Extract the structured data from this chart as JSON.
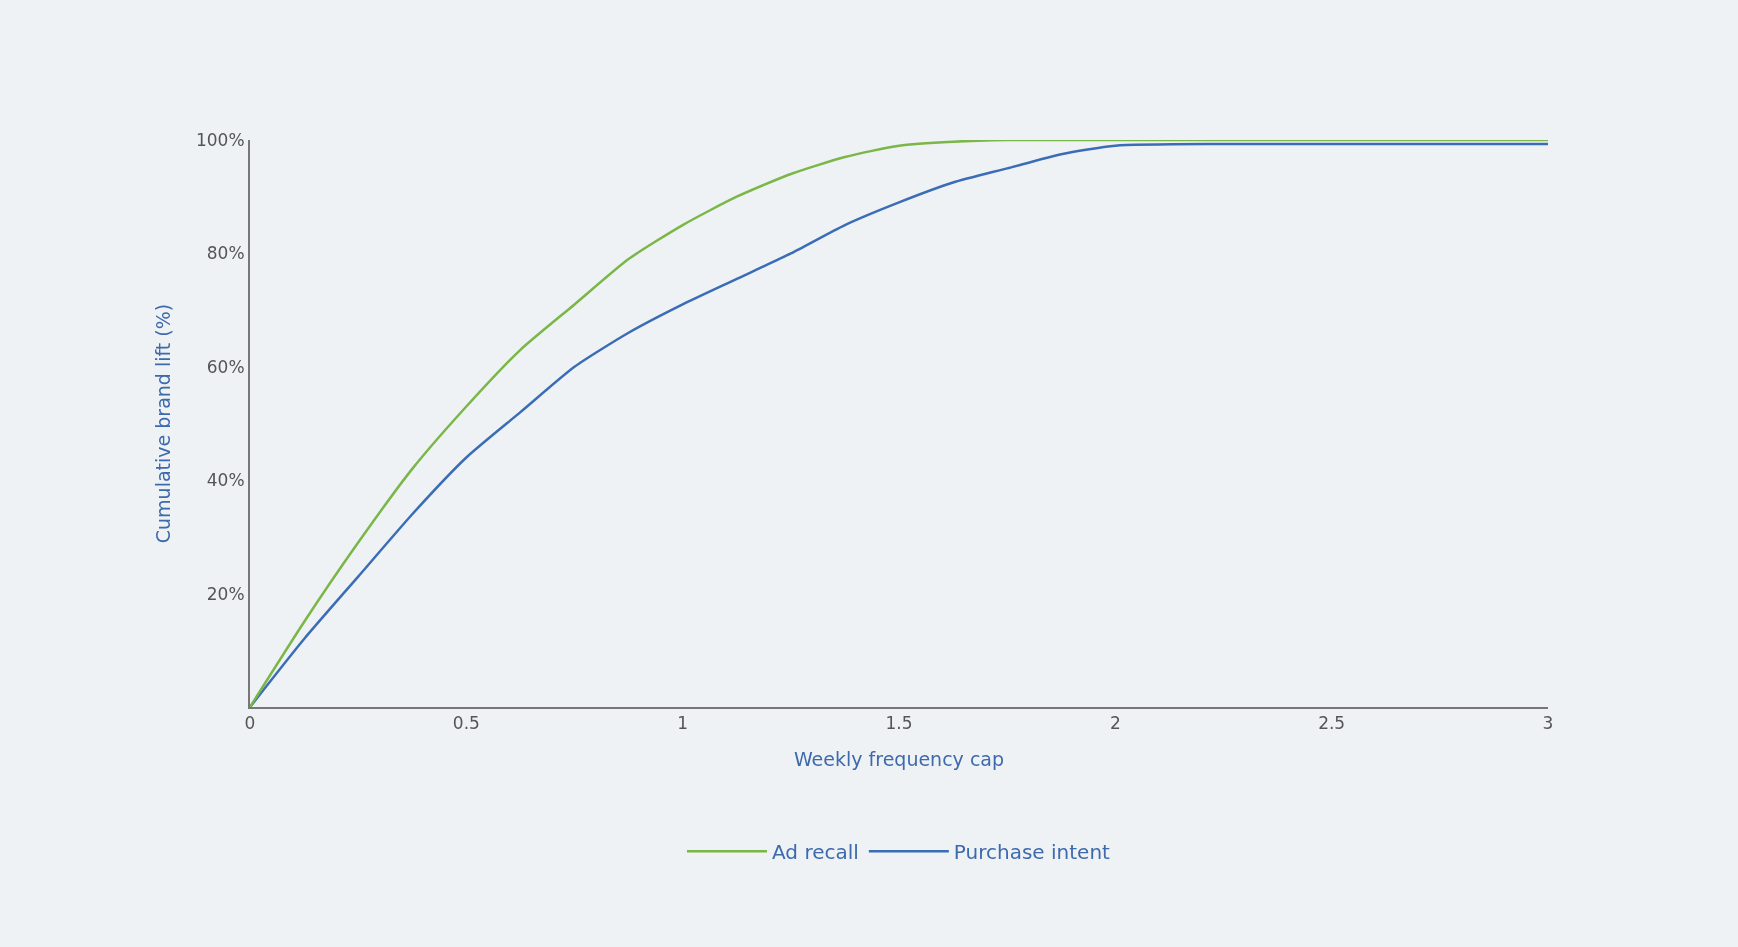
{
  "chart_data": {
    "type": "line",
    "xlabel": "Weekly frequency cap",
    "ylabel": "Cumulative brand lift (%)",
    "x": [
      0,
      0.125,
      0.25,
      0.375,
      0.5,
      0.625,
      0.75,
      0.875,
      1,
      1.125,
      1.25,
      1.375,
      1.5,
      1.625,
      1.75,
      1.875,
      2,
      2.25,
      2.5,
      2.75,
      3
    ],
    "series": [
      {
        "name": "Ad recall",
        "color": "#7ab648",
        "values": [
          0,
          15,
          29,
          42,
          53,
          63,
          71,
          79,
          85,
          90,
          94,
          97,
          99,
          99.7,
          100,
          100,
          100,
          100,
          100,
          100,
          100
        ]
      },
      {
        "name": "Purchase intent",
        "color": "#3a6db5",
        "values": [
          0,
          12,
          23,
          34,
          44,
          52,
          60,
          66,
          71,
          75.5,
          80,
          85,
          89,
          92.5,
          95,
          97.5,
          99,
          99.3,
          99.3,
          99.3,
          99.3
        ]
      }
    ],
    "xlim": [
      0,
      3
    ],
    "xticks": [
      0,
      0.5,
      1,
      1.5,
      2,
      2.5,
      3
    ],
    "ylim": [
      0,
      100
    ],
    "yticks": [
      {
        "value": 20,
        "label": "20%"
      },
      {
        "value": 40,
        "label": "40%"
      },
      {
        "value": 60,
        "label": "60%"
      },
      {
        "value": 80,
        "label": "80%"
      },
      {
        "value": 100,
        "label": "100%"
      }
    ],
    "grid": false,
    "legend": "bottom",
    "marker": "none",
    "line_style": "solid"
  }
}
